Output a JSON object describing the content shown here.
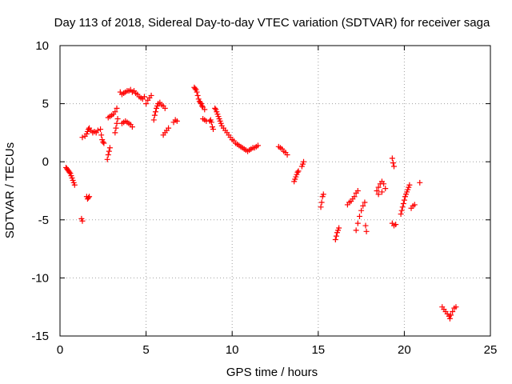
{
  "chart_data": {
    "type": "scatter",
    "title": "Day 113 of 2018, Sidereal Day-to-day VTEC variation (SDTVAR) for receiver saga",
    "xlabel": "GPS time / hours",
    "ylabel": "SDTVAR / TECUs",
    "xlim": [
      0,
      25
    ],
    "ylim": [
      -15,
      10
    ],
    "xticks": [
      0,
      5,
      10,
      15,
      20,
      25
    ],
    "yticks": [
      -15,
      -10,
      -5,
      0,
      5,
      10
    ],
    "grid": true,
    "marker": "+",
    "color": "#ff0000",
    "series": [
      {
        "name": "SDTVAR",
        "segments": [
          [
            [
              0.35,
              -0.5
            ],
            [
              0.4,
              -0.6
            ],
            [
              0.45,
              -0.7
            ],
            [
              0.5,
              -0.8
            ],
            [
              0.55,
              -0.9
            ],
            [
              0.6,
              -1.0
            ],
            [
              0.65,
              -1.2
            ],
            [
              0.7,
              -1.4
            ],
            [
              0.75,
              -1.6
            ],
            [
              0.8,
              -1.8
            ],
            [
              0.85,
              -2.0
            ]
          ],
          [
            [
              1.25,
              -4.9
            ],
            [
              1.3,
              -5.1
            ]
          ],
          [
            [
              1.3,
              2.1
            ],
            [
              1.45,
              2.2
            ],
            [
              1.55,
              2.4
            ],
            [
              1.6,
              2.6
            ],
            [
              1.65,
              2.8
            ],
            [
              1.7,
              2.9
            ],
            [
              1.8,
              2.7
            ],
            [
              1.9,
              2.5
            ],
            [
              2.0,
              2.6
            ],
            [
              2.1,
              2.5
            ],
            [
              2.2,
              2.7
            ]
          ],
          [
            [
              1.55,
              -3.0
            ],
            [
              1.6,
              -3.2
            ],
            [
              1.65,
              -3.1
            ],
            [
              1.7,
              -3.0
            ]
          ],
          [
            [
              2.35,
              2.8
            ],
            [
              2.4,
              2.3
            ],
            [
              2.45,
              1.9
            ],
            [
              2.5,
              1.7
            ],
            [
              2.55,
              1.6
            ]
          ],
          [
            [
              2.75,
              0.2
            ],
            [
              2.8,
              0.6
            ],
            [
              2.85,
              0.9
            ],
            [
              2.9,
              1.2
            ]
          ],
          [
            [
              2.8,
              3.8
            ],
            [
              2.9,
              3.9
            ],
            [
              3.0,
              4.0
            ],
            [
              3.1,
              4.1
            ],
            [
              3.2,
              4.3
            ],
            [
              3.3,
              4.6
            ]
          ],
          [
            [
              3.2,
              2.5
            ],
            [
              3.25,
              2.9
            ],
            [
              3.3,
              3.3
            ],
            [
              3.35,
              3.7
            ]
          ],
          [
            [
              3.5,
              6.0
            ],
            [
              3.6,
              5.8
            ],
            [
              3.7,
              5.9
            ],
            [
              3.8,
              6.0
            ],
            [
              3.9,
              6.1
            ],
            [
              4.0,
              6.1
            ],
            [
              4.1,
              6.2
            ],
            [
              4.2,
              6.0
            ],
            [
              4.3,
              6.1
            ],
            [
              4.4,
              5.9
            ],
            [
              4.5,
              5.8
            ],
            [
              4.6,
              5.6
            ],
            [
              4.7,
              5.5
            ],
            [
              4.8,
              5.4
            ],
            [
              4.9,
              5.6
            ]
          ],
          [
            [
              3.6,
              3.3
            ],
            [
              3.7,
              3.4
            ],
            [
              3.8,
              3.5
            ],
            [
              3.9,
              3.4
            ],
            [
              4.0,
              3.3
            ],
            [
              4.1,
              3.2
            ],
            [
              4.2,
              3.0
            ]
          ],
          [
            [
              5.0,
              5.0
            ],
            [
              5.1,
              5.3
            ],
            [
              5.2,
              5.5
            ],
            [
              5.3,
              5.7
            ]
          ],
          [
            [
              5.45,
              3.6
            ],
            [
              5.5,
              4.0
            ],
            [
              5.55,
              4.3
            ],
            [
              5.6,
              4.6
            ],
            [
              5.65,
              4.8
            ],
            [
              5.7,
              5.0
            ],
            [
              5.8,
              5.1
            ],
            [
              5.9,
              4.9
            ],
            [
              6.0,
              4.8
            ],
            [
              6.1,
              4.6
            ]
          ],
          [
            [
              6.0,
              2.3
            ],
            [
              6.1,
              2.5
            ],
            [
              6.2,
              2.7
            ],
            [
              6.3,
              2.9
            ]
          ],
          [
            [
              6.6,
              3.4
            ],
            [
              6.7,
              3.6
            ],
            [
              6.8,
              3.5
            ]
          ],
          [
            [
              7.8,
              6.4
            ],
            [
              7.85,
              6.3
            ],
            [
              7.9,
              6.2
            ],
            [
              7.95,
              6.0
            ],
            [
              8.0,
              5.7
            ],
            [
              8.05,
              5.4
            ],
            [
              8.1,
              5.2
            ],
            [
              8.15,
              5.1
            ],
            [
              8.2,
              5.0
            ],
            [
              8.25,
              4.8
            ],
            [
              8.3,
              4.7
            ],
            [
              8.4,
              4.5
            ]
          ],
          [
            [
              8.3,
              3.7
            ],
            [
              8.4,
              3.6
            ],
            [
              8.5,
              3.5
            ]
          ],
          [
            [
              8.7,
              3.5
            ],
            [
              8.75,
              3.6
            ],
            [
              8.8,
              3.4
            ],
            [
              8.85,
              3.0
            ],
            [
              8.9,
              2.8
            ]
          ],
          [
            [
              9.0,
              4.6
            ],
            [
              9.05,
              4.5
            ],
            [
              9.1,
              4.3
            ],
            [
              9.15,
              4.1
            ],
            [
              9.2,
              3.9
            ],
            [
              9.25,
              3.7
            ],
            [
              9.3,
              3.5
            ],
            [
              9.35,
              3.3
            ],
            [
              9.4,
              3.1
            ],
            [
              9.5,
              2.9
            ],
            [
              9.6,
              2.7
            ],
            [
              9.7,
              2.5
            ],
            [
              9.8,
              2.3
            ],
            [
              9.9,
              2.1
            ],
            [
              10.0,
              1.9
            ],
            [
              10.1,
              1.8
            ],
            [
              10.2,
              1.6
            ],
            [
              10.3,
              1.5
            ],
            [
              10.4,
              1.4
            ],
            [
              10.5,
              1.3
            ],
            [
              10.6,
              1.2
            ],
            [
              10.7,
              1.1
            ]
          ],
          [
            [
              10.8,
              1.0
            ],
            [
              10.9,
              0.9
            ],
            [
              11.0,
              1.0
            ],
            [
              11.1,
              1.1
            ],
            [
              11.2,
              1.2
            ],
            [
              11.3,
              1.2
            ],
            [
              11.4,
              1.3
            ],
            [
              11.5,
              1.4
            ]
          ],
          [
            [
              12.7,
              1.3
            ],
            [
              12.8,
              1.2
            ],
            [
              12.9,
              1.1
            ],
            [
              13.0,
              0.9
            ],
            [
              13.1,
              0.8
            ],
            [
              13.2,
              0.6
            ]
          ],
          [
            [
              13.6,
              -1.7
            ],
            [
              13.65,
              -1.5
            ],
            [
              13.7,
              -1.3
            ],
            [
              13.75,
              -1.1
            ],
            [
              13.8,
              -0.9
            ],
            [
              13.85,
              -0.8
            ]
          ],
          [
            [
              14.05,
              -0.4
            ],
            [
              14.1,
              -0.2
            ],
            [
              14.15,
              0.0
            ]
          ],
          [
            [
              15.15,
              -3.9
            ],
            [
              15.2,
              -3.5
            ],
            [
              15.25,
              -3.0
            ],
            [
              15.3,
              -2.8
            ]
          ],
          [
            [
              16.0,
              -6.7
            ],
            [
              16.05,
              -6.4
            ],
            [
              16.1,
              -6.1
            ],
            [
              16.15,
              -5.9
            ],
            [
              16.2,
              -5.7
            ]
          ],
          [
            [
              16.7,
              -3.7
            ],
            [
              16.8,
              -3.5
            ],
            [
              16.9,
              -3.4
            ],
            [
              17.0,
              -3.2
            ],
            [
              17.1,
              -3.0
            ],
            [
              17.2,
              -2.7
            ],
            [
              17.3,
              -2.5
            ]
          ],
          [
            [
              17.2,
              -5.9
            ],
            [
              17.3,
              -5.3
            ],
            [
              17.4,
              -4.7
            ],
            [
              17.5,
              -4.2
            ],
            [
              17.6,
              -3.8
            ],
            [
              17.7,
              -3.5
            ],
            [
              17.75,
              -5.5
            ],
            [
              17.8,
              -6.0
            ]
          ],
          [
            [
              18.4,
              -2.5
            ],
            [
              18.5,
              -2.2
            ],
            [
              18.6,
              -1.9
            ],
            [
              18.7,
              -1.7
            ],
            [
              18.8,
              -1.9
            ],
            [
              18.9,
              -2.3
            ],
            [
              18.5,
              -2.8
            ],
            [
              18.7,
              -2.6
            ]
          ],
          [
            [
              19.3,
              0.3
            ],
            [
              19.35,
              -0.1
            ],
            [
              19.4,
              -0.4
            ]
          ],
          [
            [
              19.3,
              -5.3
            ],
            [
              19.4,
              -5.5
            ],
            [
              19.5,
              -5.4
            ]
          ],
          [
            [
              19.8,
              -4.5
            ],
            [
              19.85,
              -4.2
            ],
            [
              19.9,
              -3.9
            ],
            [
              19.95,
              -3.6
            ],
            [
              20.0,
              -3.3
            ],
            [
              20.05,
              -3.0
            ],
            [
              20.1,
              -2.8
            ],
            [
              20.15,
              -2.6
            ],
            [
              20.2,
              -2.4
            ],
            [
              20.25,
              -2.2
            ],
            [
              20.3,
              -2.0
            ],
            [
              20.4,
              -4.0
            ],
            [
              20.5,
              -3.8
            ],
            [
              20.6,
              -3.7
            ]
          ],
          [
            [
              20.9,
              -1.8
            ]
          ],
          [
            [
              22.2,
              -12.5
            ],
            [
              22.3,
              -12.7
            ],
            [
              22.4,
              -12.9
            ],
            [
              22.5,
              -13.1
            ],
            [
              22.6,
              -13.3
            ],
            [
              22.65,
              -13.5
            ],
            [
              22.7,
              -13.2
            ],
            [
              22.8,
              -12.9
            ],
            [
              22.9,
              -12.6
            ],
            [
              23.0,
              -12.5
            ]
          ]
        ]
      }
    ]
  }
}
